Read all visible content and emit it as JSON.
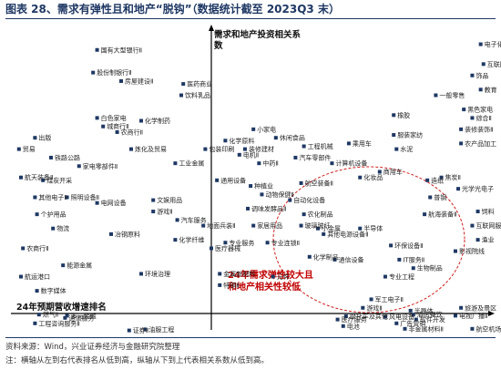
{
  "title": "图表 28、需求有弹性且和地产“脱钩”（数据统计截至 2023Q3 末）",
  "footer": {
    "source": "资料来源：Wind，兴业证券经济与金融研究院整理",
    "note": "注：横轴从左到右代表排名从低到高，纵轴从下到上代表相关系数从低到高。"
  },
  "colors": {
    "point": "#1f3864",
    "axis": "#000000",
    "ellipse": "#d02020",
    "annotation": "#c00000",
    "title": "#1f3864"
  },
  "chart_data": {
    "type": "scatter",
    "xlabel": "24年预期营收增速排名",
    "ylabel": "需求和地产投资相关系数",
    "annotation": [
      "24年需求弹性较大且",
      "和地产相关性较低"
    ],
    "points": [
      {
        "label": "国有大型银行Ⅱ",
        "x": -0.57,
        "y": 0.93
      },
      {
        "label": "股份制银行Ⅱ",
        "x": -0.59,
        "y": 0.85
      },
      {
        "label": "房屋建设Ⅱ",
        "x": -0.45,
        "y": 0.82
      },
      {
        "label": "医药商业",
        "x": -0.14,
        "y": 0.81
      },
      {
        "label": "饮料乳品",
        "x": -0.15,
        "y": 0.77
      },
      {
        "label": "白色家电",
        "x": -0.57,
        "y": 0.69
      },
      {
        "label": "化学制药",
        "x": -0.35,
        "y": 0.68
      },
      {
        "label": "城商行Ⅱ",
        "x": -0.54,
        "y": 0.66
      },
      {
        "label": "农商行Ⅱ",
        "x": -0.47,
        "y": 0.64
      },
      {
        "label": "出版",
        "x": -0.88,
        "y": 0.62
      },
      {
        "label": "贸易",
        "x": -0.96,
        "y": 0.58
      },
      {
        "label": "炼化及贸易",
        "x": -0.4,
        "y": 0.58
      },
      {
        "label": "铁路公路",
        "x": -0.8,
        "y": 0.55
      },
      {
        "label": "家电零部件Ⅱ",
        "x": -0.66,
        "y": 0.52
      },
      {
        "label": "工业金属",
        "x": -0.18,
        "y": 0.53
      },
      {
        "label": "航天装备Ⅱ",
        "x": -0.95,
        "y": 0.48
      },
      {
        "label": "煤炭开采",
        "x": -0.84,
        "y": 0.47
      },
      {
        "label": "其他电子Ⅱ",
        "x": -0.88,
        "y": 0.41
      },
      {
        "label": "照明设备Ⅱ",
        "x": -0.72,
        "y": 0.41
      },
      {
        "label": "电网设备",
        "x": -0.57,
        "y": 0.39
      },
      {
        "label": "文娱用品",
        "x": -0.29,
        "y": 0.4
      },
      {
        "label": "个护用品",
        "x": -0.87,
        "y": 0.35
      },
      {
        "label": "游戏Ⅱ",
        "x": -0.29,
        "y": 0.36
      },
      {
        "label": "汽车服务",
        "x": -0.17,
        "y": 0.33
      },
      {
        "label": "物流",
        "x": -0.79,
        "y": 0.3
      },
      {
        "label": "冶钢原料",
        "x": -0.5,
        "y": 0.28
      },
      {
        "label": "化学纤维",
        "x": -0.18,
        "y": 0.26
      },
      {
        "label": "农商行Ⅱ",
        "x": -0.94,
        "y": 0.23
      },
      {
        "label": "能源金属",
        "x": -0.74,
        "y": 0.17
      },
      {
        "label": "航运港口",
        "x": -0.95,
        "y": 0.13
      },
      {
        "label": "环境治理",
        "x": -0.35,
        "y": 0.14
      },
      {
        "label": "数字媒体",
        "x": -0.87,
        "y": 0.08
      },
      {
        "label": "燃气Ⅱ",
        "x": -0.86,
        "y": -0.02
      },
      {
        "label": "多元金融",
        "x": -0.72,
        "y": -0.04
      },
      {
        "label": "通信服务",
        "x": -0.73,
        "y": -0.08
      },
      {
        "label": "工程咨询服务Ⅱ",
        "x": -0.88,
        "y": -0.18
      },
      {
        "label": "油服工程",
        "x": -0.33,
        "y": -0.29
      },
      {
        "label": "证券Ⅱ",
        "x": -0.41,
        "y": -0.31
      },
      {
        "label": "小家电",
        "x": 0.15,
        "y": 0.65
      },
      {
        "label": "休闲食品",
        "x": 0.23,
        "y": 0.62
      },
      {
        "label": "化学原料",
        "x": 0.05,
        "y": 0.61
      },
      {
        "label": "装修建材",
        "x": 0.12,
        "y": 0.58
      },
      {
        "label": "工程机械",
        "x": 0.33,
        "y": 0.59
      },
      {
        "label": "包装印刷",
        "x": -0.03,
        "y": 0.58
      },
      {
        "label": "电机Ⅱ",
        "x": 0.1,
        "y": 0.56
      },
      {
        "label": "汽车零部件",
        "x": 0.3,
        "y": 0.55
      },
      {
        "label": "中药Ⅱ",
        "x": 0.17,
        "y": 0.53
      },
      {
        "label": "通用设备",
        "x": 0.02,
        "y": 0.47
      },
      {
        "label": "航空装备Ⅱ",
        "x": 0.32,
        "y": 0.46
      },
      {
        "label": "种植业",
        "x": 0.14,
        "y": 0.45
      },
      {
        "label": "动物保健Ⅱ",
        "x": 0.18,
        "y": 0.42
      },
      {
        "label": "自动化设备",
        "x": 0.28,
        "y": 0.4
      },
      {
        "label": "调味发酵品Ⅱ",
        "x": 0.13,
        "y": 0.37
      },
      {
        "label": "农化制品",
        "x": 0.33,
        "y": 0.35
      },
      {
        "label": "地面兵装Ⅱ",
        "x": -0.04,
        "y": 0.31
      },
      {
        "label": "家居用品",
        "x": 0.15,
        "y": 0.31
      },
      {
        "label": "玻璃玻纤",
        "x": 0.32,
        "y": 0.31
      },
      {
        "label": "专业服务",
        "x": 0.05,
        "y": 0.25
      },
      {
        "label": "医疗器械",
        "x": 0.0,
        "y": 0.23
      },
      {
        "label": "专业连锁Ⅱ",
        "x": 0.2,
        "y": 0.25
      },
      {
        "label": "化学制品",
        "x": 0.35,
        "y": 0.2
      },
      {
        "label": "金属新材料",
        "x": 0.03,
        "y": 0.14
      },
      {
        "label": "元件",
        "x": 0.22,
        "y": 0.13
      },
      {
        "label": "特钢Ⅱ",
        "x": 0.03,
        "y": 0.1
      },
      {
        "label": "电子化学品Ⅱ",
        "x": 0.96,
        "y": 0.95
      },
      {
        "label": "互联网电商",
        "x": 0.97,
        "y": 0.88
      },
      {
        "label": "饰品",
        "x": 0.93,
        "y": 0.84
      },
      {
        "label": "教育",
        "x": 0.96,
        "y": 0.79
      },
      {
        "label": "一般零售",
        "x": 0.8,
        "y": 0.77
      },
      {
        "label": "黑色家电",
        "x": 0.9,
        "y": 0.72
      },
      {
        "label": "橡胶",
        "x": 0.65,
        "y": 0.7
      },
      {
        "label": "综合Ⅱ",
        "x": 0.93,
        "y": 0.69
      },
      {
        "label": "装修装饰Ⅱ",
        "x": 0.89,
        "y": 0.65
      },
      {
        "label": "服装家纺",
        "x": 0.65,
        "y": 0.63
      },
      {
        "label": "乘用车",
        "x": 0.49,
        "y": 0.6
      },
      {
        "label": "水泥",
        "x": 0.66,
        "y": 0.58
      },
      {
        "label": "农产品加工",
        "x": 0.89,
        "y": 0.6
      },
      {
        "label": "计算机设备",
        "x": 0.43,
        "y": 0.53
      },
      {
        "label": "商用车",
        "x": 0.6,
        "y": 0.5
      },
      {
        "label": "化妆品",
        "x": 0.53,
        "y": 0.48
      },
      {
        "label": "焦炭Ⅱ",
        "x": 0.82,
        "y": 0.48
      },
      {
        "label": "光学光电子",
        "x": 0.88,
        "y": 0.44
      },
      {
        "label": "造纸",
        "x": 0.77,
        "y": 0.47
      },
      {
        "label": "普钢",
        "x": 0.78,
        "y": 0.41
      },
      {
        "label": "饲料",
        "x": 0.95,
        "y": 0.36
      },
      {
        "label": "航海装备Ⅱ",
        "x": 0.76,
        "y": 0.35
      },
      {
        "label": "小金属",
        "x": 0.38,
        "y": 0.3
      },
      {
        "label": "其他电源设备Ⅱ",
        "x": 0.4,
        "y": 0.28
      },
      {
        "label": "半导体",
        "x": 0.53,
        "y": 0.3
      },
      {
        "label": "环保设备Ⅱ",
        "x": 0.64,
        "y": 0.24
      },
      {
        "label": "IT服务Ⅱ",
        "x": 0.67,
        "y": 0.19
      },
      {
        "label": "生物制品",
        "x": 0.72,
        "y": 0.16
      },
      {
        "label": "互联网服务",
        "x": 0.93,
        "y": 0.31
      },
      {
        "label": "渔业",
        "x": 0.95,
        "y": 0.26
      },
      {
        "label": "影视院线",
        "x": 0.87,
        "y": 0.22
      },
      {
        "label": "通信设备",
        "x": 0.44,
        "y": 0.19
      },
      {
        "label": "专业工程",
        "x": 0.62,
        "y": 0.13
      },
      {
        "label": "军工电子Ⅱ",
        "x": 0.57,
        "y": 0.05
      },
      {
        "label": "游戏Ⅱ",
        "x": 0.54,
        "y": 0.02
      },
      {
        "label": "半导体",
        "x": 0.71,
        "y": 0.01
      },
      {
        "label": "酒店餐饮",
        "x": 0.72,
        "y": -0.02
      },
      {
        "label": "旅游及景区",
        "x": 0.89,
        "y": 0.02
      },
      {
        "label": "电视广播Ⅱ",
        "x": 0.87,
        "y": -0.04
      },
      {
        "label": "摩托车及其他",
        "x": 0.48,
        "y": -0.05
      },
      {
        "label": "风电设备",
        "x": 0.62,
        "y": -0.06
      },
      {
        "label": "医疗服务",
        "x": 0.45,
        "y": -0.11
      },
      {
        "label": "软件开发",
        "x": 0.73,
        "y": -0.11
      },
      {
        "label": "广告营销",
        "x": 0.66,
        "y": -0.18
      },
      {
        "label": "电池",
        "x": 0.47,
        "y": -0.23
      },
      {
        "label": "非金属材料Ⅱ",
        "x": 0.69,
        "y": -0.28
      },
      {
        "label": "航空机场",
        "x": 0.93,
        "y": -0.28
      }
    ]
  }
}
